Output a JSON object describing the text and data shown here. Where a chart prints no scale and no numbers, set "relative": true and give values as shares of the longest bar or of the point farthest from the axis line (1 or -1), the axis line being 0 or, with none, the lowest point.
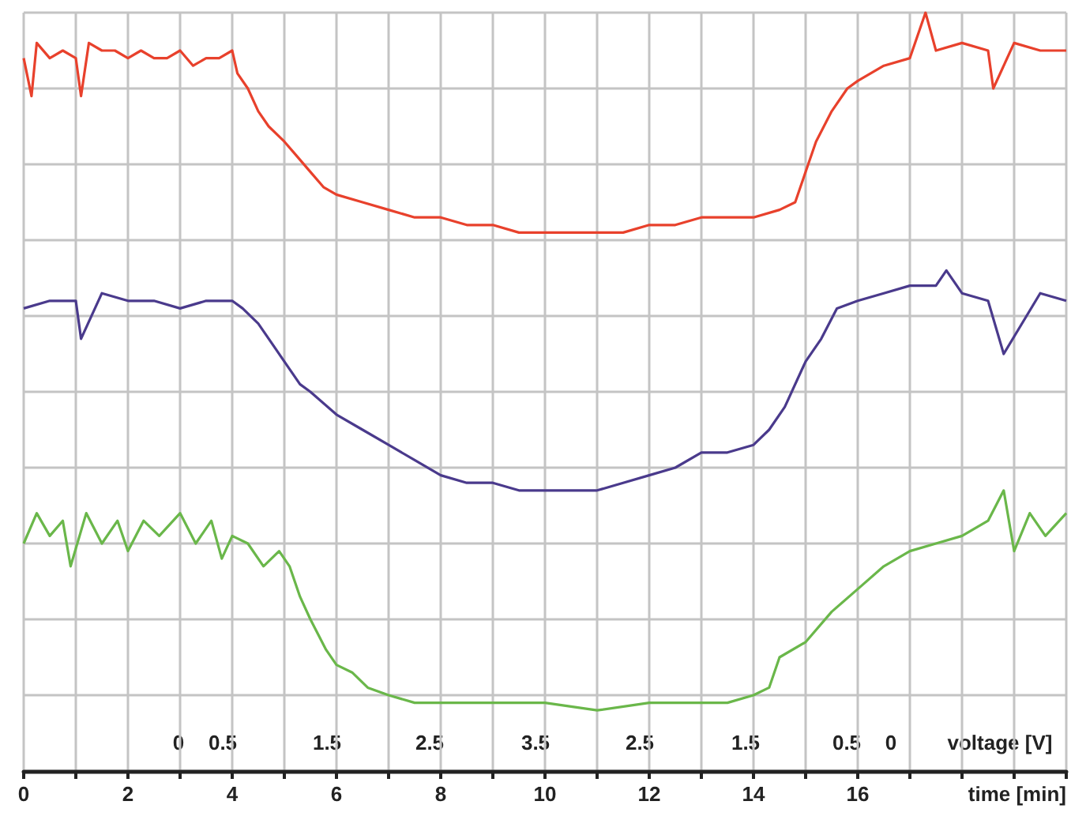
{
  "chart_data": {
    "type": "line",
    "relative": true,
    "xlabel": "time [min]",
    "annotations": [
      "0",
      "0.5",
      "1.5",
      "2.5",
      "3.5",
      "2.5",
      "1.5",
      "0.5",
      "0",
      "voltage [V]"
    ],
    "xlim": [
      0,
      20
    ],
    "xticks": [
      0,
      {
        "value": 1,
        "label": null
      },
      2,
      {
        "value": 3,
        "label": null
      },
      4,
      {
        "value": 5,
        "label": null
      },
      6,
      {
        "value": 7,
        "label": null
      },
      8,
      {
        "value": 9,
        "label": null
      },
      10,
      {
        "value": 11,
        "label": null
      },
      12,
      {
        "value": 13,
        "label": null
      },
      14,
      {
        "value": 15,
        "label": null
      },
      16,
      {
        "value": 17,
        "label": null
      },
      {
        "value": 18,
        "label": null
      },
      {
        "value": 19,
        "label": null
      },
      {
        "value": 20,
        "label": null
      }
    ],
    "grid": true,
    "marker": "none",
    "line_style": "solid",
    "series": [
      {
        "color": "#e8412c",
        "x": [
          0,
          0.15,
          0.25,
          0.5,
          0.75,
          1,
          1.1,
          1.25,
          1.5,
          1.75,
          2,
          2.25,
          2.5,
          2.75,
          3,
          3.25,
          3.5,
          3.75,
          4,
          4.1,
          4.3,
          4.5,
          4.7,
          5,
          5.25,
          5.5,
          5.75,
          6,
          6.5,
          7,
          7.5,
          8,
          8.5,
          9,
          9.5,
          10,
          10.5,
          11,
          11.5,
          12,
          12.5,
          13,
          13.5,
          14,
          14.5,
          14.8,
          15,
          15.2,
          15.5,
          15.8,
          16,
          16.5,
          17,
          17.3,
          17.5,
          18,
          18.5,
          18.6,
          19,
          19.5,
          20
        ],
        "values": [
          0.94,
          0.89,
          0.96,
          0.94,
          0.95,
          0.94,
          0.89,
          0.96,
          0.95,
          0.95,
          0.94,
          0.95,
          0.94,
          0.94,
          0.95,
          0.93,
          0.94,
          0.94,
          0.95,
          0.92,
          0.9,
          0.87,
          0.85,
          0.83,
          0.81,
          0.79,
          0.77,
          0.76,
          0.75,
          0.74,
          0.73,
          0.73,
          0.72,
          0.72,
          0.71,
          0.71,
          0.71,
          0.71,
          0.71,
          0.72,
          0.72,
          0.73,
          0.73,
          0.73,
          0.74,
          0.75,
          0.79,
          0.83,
          0.87,
          0.9,
          0.91,
          0.93,
          0.94,
          1.0,
          0.95,
          0.96,
          0.95,
          0.9,
          0.96,
          0.95,
          0.95
        ]
      },
      {
        "color": "#4a3a8c",
        "x": [
          0,
          0.5,
          1,
          1.1,
          1.5,
          2,
          2.5,
          3,
          3.5,
          4,
          4.2,
          4.5,
          4.8,
          5,
          5.3,
          5.5,
          6,
          6.5,
          7,
          7.5,
          8,
          8.5,
          9,
          9.5,
          10,
          10.5,
          11,
          11.5,
          12,
          12.5,
          13,
          13.5,
          14,
          14.3,
          14.6,
          15,
          15.3,
          15.6,
          16,
          16.5,
          17,
          17.5,
          17.7,
          18,
          18.5,
          18.8,
          19.5,
          20
        ],
        "values": [
          0.61,
          0.62,
          0.62,
          0.57,
          0.63,
          0.62,
          0.62,
          0.61,
          0.62,
          0.62,
          0.61,
          0.59,
          0.56,
          0.54,
          0.51,
          0.5,
          0.47,
          0.45,
          0.43,
          0.41,
          0.39,
          0.38,
          0.38,
          0.37,
          0.37,
          0.37,
          0.37,
          0.38,
          0.39,
          0.4,
          0.42,
          0.42,
          0.43,
          0.45,
          0.48,
          0.54,
          0.57,
          0.61,
          0.62,
          0.63,
          0.64,
          0.64,
          0.66,
          0.63,
          0.62,
          0.55,
          0.63,
          0.62
        ]
      },
      {
        "color": "#6ab74a",
        "x": [
          0,
          0.25,
          0.5,
          0.75,
          0.9,
          1.2,
          1.5,
          1.8,
          2,
          2.3,
          2.6,
          3,
          3.3,
          3.6,
          3.8,
          4,
          4.3,
          4.6,
          4.9,
          5.1,
          5.3,
          5.5,
          5.8,
          6,
          6.3,
          6.6,
          7,
          7.5,
          8,
          9,
          10,
          11,
          12,
          13,
          13.5,
          14,
          14.3,
          14.5,
          15,
          15.5,
          16,
          16.5,
          17,
          17.5,
          18,
          18.5,
          18.8,
          19,
          19.3,
          19.6,
          20
        ],
        "values": [
          0.3,
          0.34,
          0.31,
          0.33,
          0.27,
          0.34,
          0.3,
          0.33,
          0.29,
          0.33,
          0.31,
          0.34,
          0.3,
          0.33,
          0.28,
          0.31,
          0.3,
          0.27,
          0.29,
          0.27,
          0.23,
          0.2,
          0.16,
          0.14,
          0.13,
          0.11,
          0.1,
          0.09,
          0.09,
          0.09,
          0.09,
          0.08,
          0.09,
          0.09,
          0.09,
          0.1,
          0.11,
          0.15,
          0.17,
          0.21,
          0.24,
          0.27,
          0.29,
          0.3,
          0.31,
          0.33,
          0.37,
          0.29,
          0.34,
          0.31,
          0.34
        ]
      }
    ]
  }
}
